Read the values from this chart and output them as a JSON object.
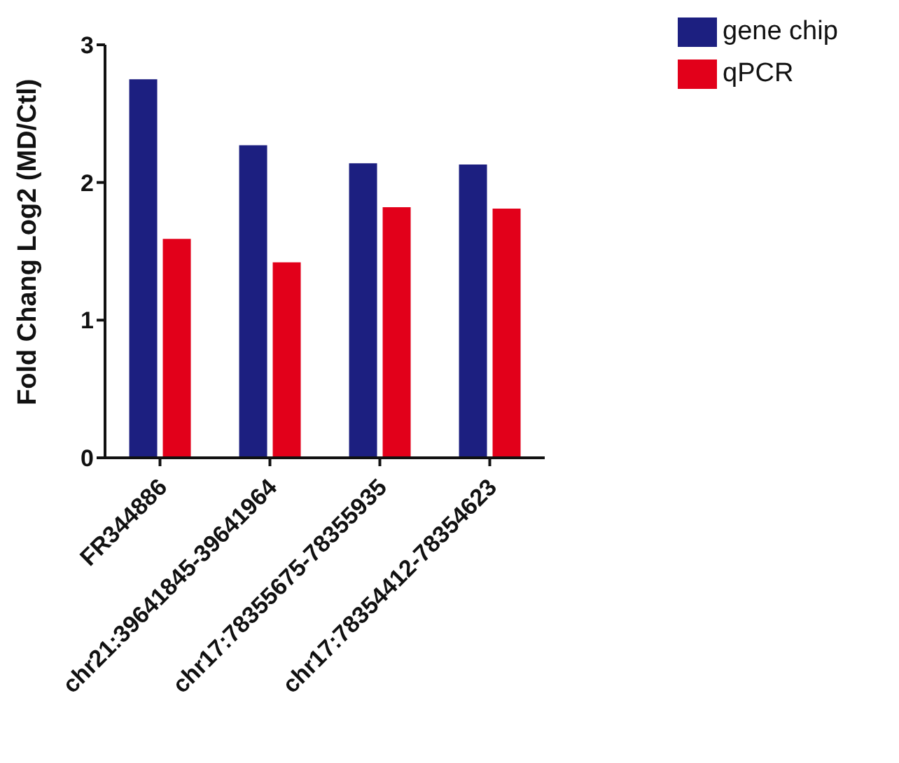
{
  "chart_data": {
    "type": "bar",
    "ylabel": "Fold Chang Log2 (MD/Ctl)",
    "categories": [
      "FR344886",
      "chr21:39641845-39641964",
      "chr17:78355675-78355935",
      "chr17:78354412-78354623"
    ],
    "series": [
      {
        "name": "gene chip",
        "color": "#1c1f80",
        "values": [
          2.75,
          2.27,
          2.14,
          2.13
        ]
      },
      {
        "name": "qPCR",
        "color": "#e2001a",
        "values": [
          1.59,
          1.42,
          1.82,
          1.81
        ]
      }
    ],
    "ylim": [
      0,
      3
    ],
    "yticks": [
      0,
      1,
      2,
      3
    ],
    "grid": false,
    "legend": "top right"
  }
}
